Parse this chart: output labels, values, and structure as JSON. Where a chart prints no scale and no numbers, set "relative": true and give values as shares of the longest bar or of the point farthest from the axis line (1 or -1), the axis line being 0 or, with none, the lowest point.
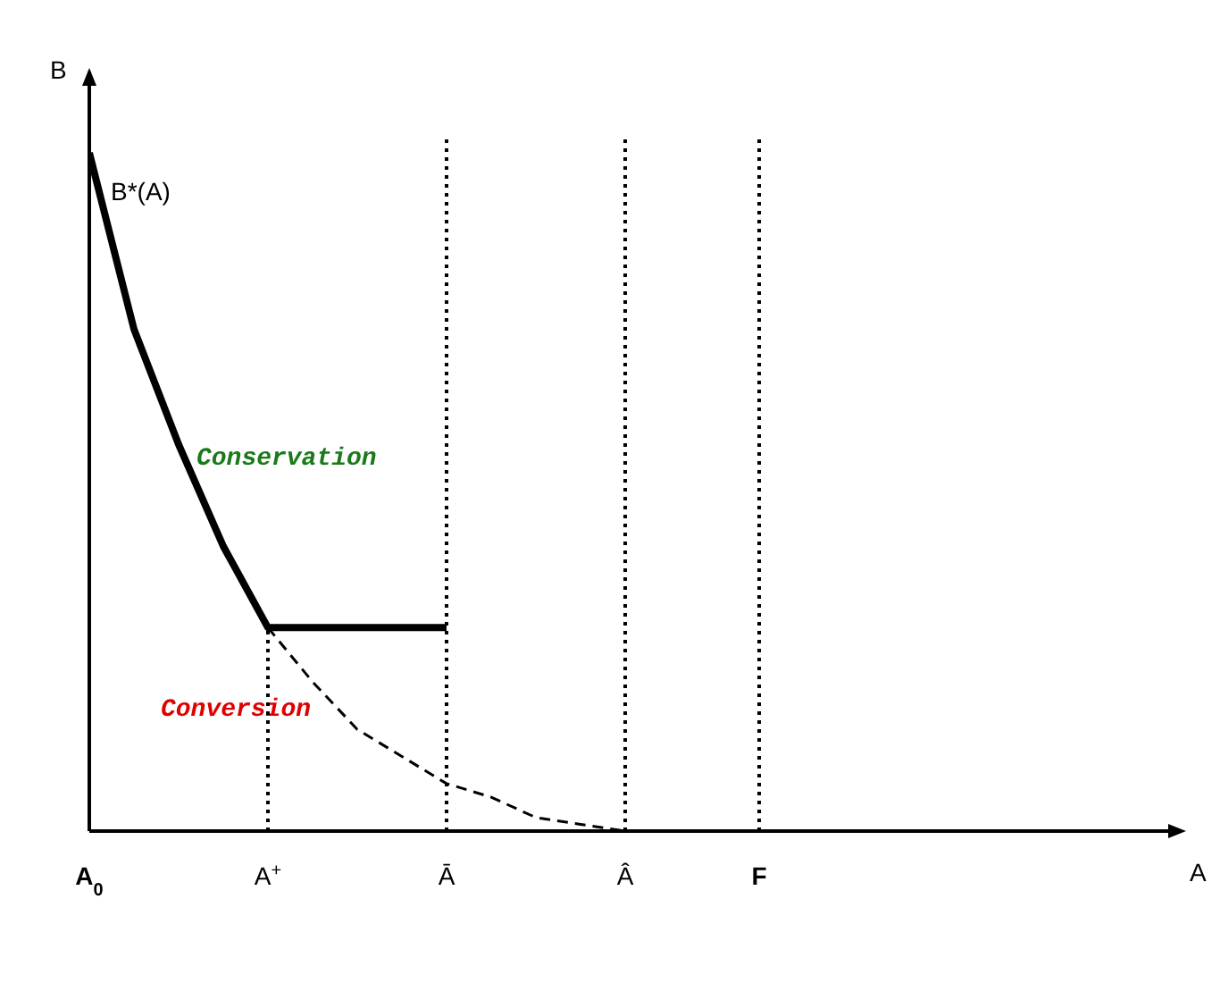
{
  "chart_data": {
    "type": "line",
    "relative": true,
    "xlabel": "A",
    "ylabel": "B",
    "categories": [
      "A$_{0}$",
      null,
      null,
      null,
      "A$^{+}$",
      null,
      null,
      null,
      "Ā",
      null,
      null,
      null,
      "Â",
      null,
      null,
      "F",
      null,
      null,
      null,
      null,
      null,
      null,
      null,
      null,
      null
    ],
    "series": [
      {
        "color": "#000000",
        "line_style": "solid",
        "values": [
          1,
          0.74,
          0.57,
          0.42,
          0.3,
          0.3,
          0.3,
          0.3,
          0.3,
          null,
          null,
          null,
          null,
          null,
          null,
          null,
          null,
          null,
          null,
          null,
          null,
          null,
          null,
          null,
          null
        ]
      },
      {
        "color": "#000000",
        "line_style": "dashed",
        "values": [
          null,
          null,
          null,
          null,
          0.3,
          0.22,
          0.15,
          0.11,
          0.07,
          0.05,
          0.02,
          0.01,
          0,
          null,
          null,
          null,
          null,
          null,
          null,
          null,
          null,
          null,
          null,
          null,
          null
        ]
      }
    ],
    "ref_lines": [
      {
        "axis": "x",
        "value": "A$^{+}$",
        "line_style": "dotted",
        "color": "#000000"
      },
      {
        "axis": "x",
        "value": "Ā",
        "line_style": "dotted",
        "color": "#000000"
      },
      {
        "axis": "x",
        "value": "Â",
        "line_style": "dotted",
        "color": "#000000"
      },
      {
        "axis": "x",
        "value": "F",
        "line_style": "dotted",
        "color": "#000000"
      }
    ],
    "annotations": [
      "B*(A)",
      "Conservation",
      "Conversion"
    ],
    "marker": "none"
  }
}
